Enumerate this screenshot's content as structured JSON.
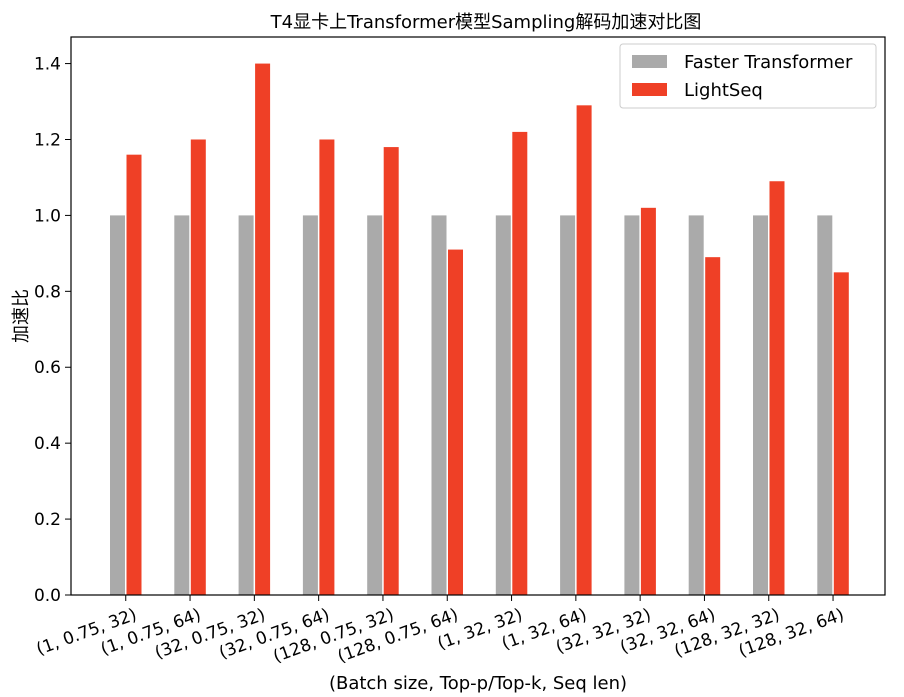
{
  "chart_data": {
    "type": "bar",
    "title": "T4显卡上Transformer模型Sampling解码加速对比图",
    "xlabel": "(Batch size, Top-p/Top-k, Seq len)",
    "ylabel": "加速比",
    "ylim": [
      0,
      1.47
    ],
    "yticks": [
      0.0,
      0.2,
      0.4,
      0.6,
      0.8,
      1.0,
      1.2,
      1.4
    ],
    "grid": false,
    "legend_position": "top-right",
    "categories": [
      "(1, 0.75, 32)",
      "(1, 0.75, 64)",
      "(32, 0.75, 32)",
      "(32, 0.75, 64)",
      "(128, 0.75, 32)",
      "(128, 0.75, 64)",
      "(1, 32, 32)",
      "(1, 32, 64)",
      "(32, 32, 32)",
      "(32, 32, 64)",
      "(128, 32, 32)",
      "(128, 32, 64)"
    ],
    "series": [
      {
        "name": "Faster Transformer",
        "color": "#aaaaaa",
        "values": [
          1.0,
          1.0,
          1.0,
          1.0,
          1.0,
          1.0,
          1.0,
          1.0,
          1.0,
          1.0,
          1.0,
          1.0
        ]
      },
      {
        "name": "LightSeq",
        "color": "#ef4026",
        "values": [
          1.16,
          1.2,
          1.4,
          1.2,
          1.18,
          0.91,
          1.22,
          1.29,
          1.02,
          0.89,
          1.09,
          0.85
        ]
      }
    ]
  }
}
